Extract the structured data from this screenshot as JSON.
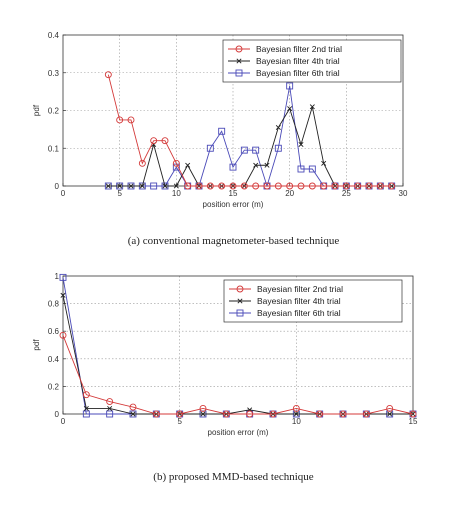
{
  "chart_data": [
    {
      "type": "line",
      "title": "",
      "xlabel": "position error (m)",
      "ylabel": "pdf",
      "xlim": [
        0,
        30
      ],
      "ylim": [
        0,
        0.4
      ],
      "xticks": [
        0,
        5,
        10,
        15,
        20,
        25,
        30
      ],
      "yticks": [
        0,
        0.1,
        0.2,
        0.3,
        0.4
      ],
      "grid": true,
      "legend_position": "top-right",
      "series": [
        {
          "name": "Bayesian filter 2nd trial",
          "color": "#d43a3a",
          "marker": "circle",
          "x": [
            4,
            5,
            6,
            7,
            8,
            9,
            10,
            11,
            12,
            13,
            14,
            15,
            16,
            17,
            18,
            19,
            20,
            21,
            22,
            23,
            24,
            25,
            26,
            27,
            28,
            29
          ],
          "y": [
            0.295,
            0.175,
            0.175,
            0.06,
            0.12,
            0.12,
            0.06,
            0,
            0,
            0,
            0,
            0,
            0,
            0,
            0,
            0,
            0,
            0,
            0,
            0,
            0,
            0,
            0,
            0,
            0,
            0
          ]
        },
        {
          "name": "Bayesian filter 4th trial",
          "color": "#222222",
          "marker": "x",
          "x": [
            4,
            5,
            6,
            7,
            8,
            9,
            10,
            11,
            12,
            13,
            14,
            15,
            16,
            17,
            18,
            19,
            20,
            21,
            22,
            23,
            24,
            25,
            26,
            27,
            28,
            29
          ],
          "y": [
            0,
            0,
            0,
            0,
            0.11,
            0,
            0,
            0.055,
            0,
            0,
            0,
            0,
            0,
            0.055,
            0.055,
            0.155,
            0.205,
            0.11,
            0.21,
            0.06,
            0,
            0,
            0,
            0,
            0,
            0
          ]
        },
        {
          "name": "Bayesian filter 6th trial",
          "color": "#4a4ab8",
          "marker": "square",
          "x": [
            4,
            5,
            6,
            7,
            8,
            9,
            10,
            11,
            12,
            13,
            14,
            15,
            16,
            17,
            18,
            19,
            20,
            21,
            22,
            23,
            24,
            25,
            26,
            27,
            28,
            29
          ],
          "y": [
            0,
            0,
            0,
            0,
            0,
            0,
            0.05,
            0,
            0,
            0.1,
            0.145,
            0.05,
            0.095,
            0.095,
            0,
            0.1,
            0.265,
            0.045,
            0.045,
            0,
            0,
            0,
            0,
            0,
            0,
            0
          ]
        }
      ]
    },
    {
      "type": "line",
      "title": "",
      "xlabel": "position error (m)",
      "ylabel": "pdf",
      "xlim": [
        0,
        15
      ],
      "ylim": [
        0,
        1
      ],
      "xticks": [
        0,
        5,
        10,
        15
      ],
      "yticks": [
        0,
        0.2,
        0.4,
        0.6,
        0.8,
        1
      ],
      "grid": true,
      "legend_position": "top-right",
      "series": [
        {
          "name": "Bayesian filter 2nd trial",
          "color": "#d43a3a",
          "marker": "circle",
          "x": [
            0,
            1,
            2,
            3,
            4,
            5,
            6,
            7,
            8,
            9,
            10,
            11,
            12,
            13,
            14,
            15
          ],
          "y": [
            0.57,
            0.14,
            0.09,
            0.05,
            0,
            0,
            0.04,
            0,
            0,
            0,
            0.04,
            0,
            0,
            0,
            0.04,
            0
          ]
        },
        {
          "name": "Bayesian filter 4th trial",
          "color": "#222222",
          "marker": "x",
          "x": [
            0,
            1,
            2,
            3,
            4,
            5,
            6,
            7,
            8,
            9,
            10,
            11,
            12,
            13,
            14,
            15
          ],
          "y": [
            0.86,
            0.04,
            0.04,
            0,
            0,
            0,
            0,
            0,
            0.03,
            0,
            0,
            0,
            0,
            0,
            0,
            0
          ]
        },
        {
          "name": "Bayesian filter 6th trial",
          "color": "#4a4ab8",
          "marker": "square",
          "x": [
            0,
            1,
            2,
            3,
            4,
            5,
            6,
            7,
            8,
            9,
            10,
            11,
            12,
            13,
            14,
            15
          ],
          "y": [
            0.99,
            0,
            0,
            0,
            0,
            0,
            0,
            0,
            0,
            0,
            0,
            0,
            0,
            0,
            0,
            0
          ]
        }
      ]
    }
  ],
  "captions": {
    "a": "(a) conventional magnetometer-based technique",
    "b": "(b) proposed MMD-based technique"
  }
}
